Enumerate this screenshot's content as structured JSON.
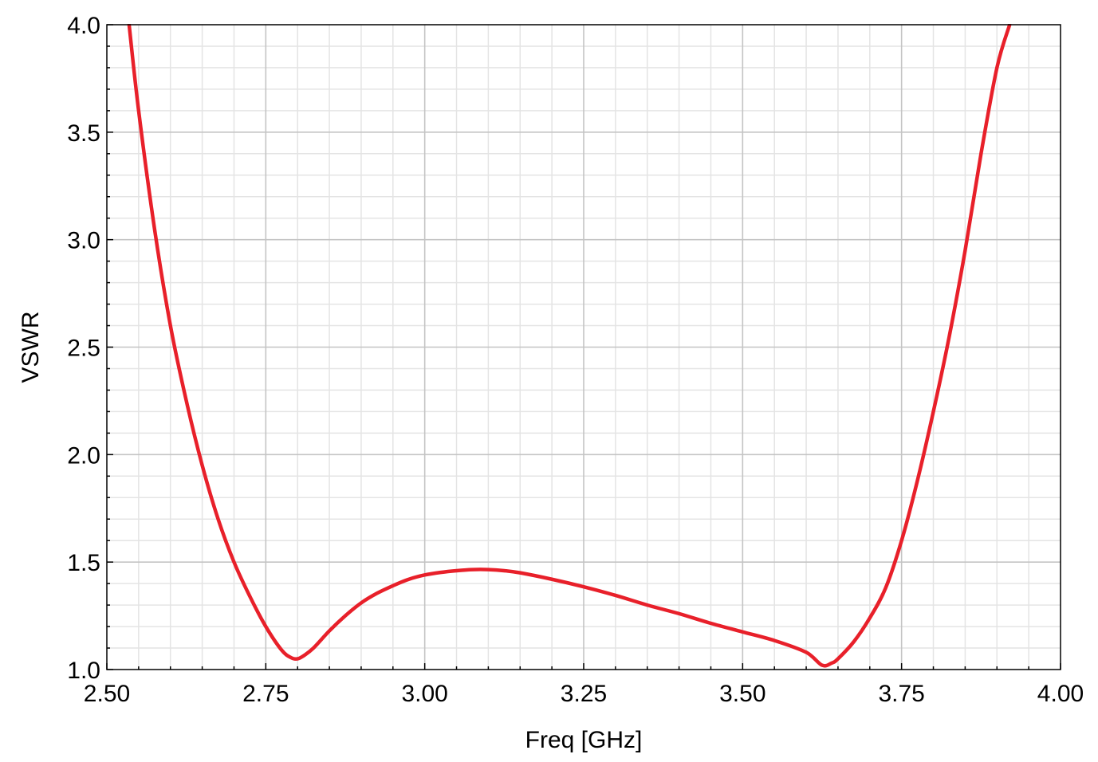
{
  "chart_data": {
    "type": "line",
    "xlabel": "Freq [GHz]",
    "ylabel": "VSWR",
    "xlim": [
      2.5,
      4.0
    ],
    "ylim": [
      1.0,
      4.0
    ],
    "x_ticks": [
      "2.50",
      "2.75",
      "3.00",
      "3.25",
      "3.50",
      "3.75",
      "4.00"
    ],
    "y_ticks": [
      "1.0",
      "1.5",
      "2.0",
      "2.5",
      "3.0",
      "3.5",
      "4.0"
    ],
    "grid": true,
    "series": [
      {
        "color": "#e8202a",
        "x": [
          2.535,
          2.55,
          2.575,
          2.6,
          2.625,
          2.65,
          2.675,
          2.7,
          2.725,
          2.75,
          2.775,
          2.79,
          2.8,
          2.81,
          2.825,
          2.85,
          2.875,
          2.9,
          2.925,
          2.95,
          2.975,
          3.0,
          3.025,
          3.05,
          3.075,
          3.1,
          3.125,
          3.15,
          3.2,
          3.25,
          3.3,
          3.35,
          3.4,
          3.45,
          3.5,
          3.55,
          3.6,
          3.625,
          3.64,
          3.65,
          3.675,
          3.7,
          3.725,
          3.75,
          3.775,
          3.8,
          3.825,
          3.85,
          3.875,
          3.9,
          3.92
        ],
        "y": [
          4.0,
          3.6,
          3.05,
          2.6,
          2.25,
          1.95,
          1.7,
          1.5,
          1.34,
          1.2,
          1.09,
          1.055,
          1.05,
          1.065,
          1.1,
          1.18,
          1.25,
          1.31,
          1.355,
          1.39,
          1.42,
          1.44,
          1.452,
          1.46,
          1.465,
          1.465,
          1.46,
          1.45,
          1.42,
          1.385,
          1.345,
          1.3,
          1.26,
          1.215,
          1.175,
          1.135,
          1.08,
          1.02,
          1.03,
          1.05,
          1.13,
          1.24,
          1.38,
          1.6,
          1.88,
          2.2,
          2.55,
          2.95,
          3.4,
          3.8,
          4.0
        ]
      }
    ]
  }
}
